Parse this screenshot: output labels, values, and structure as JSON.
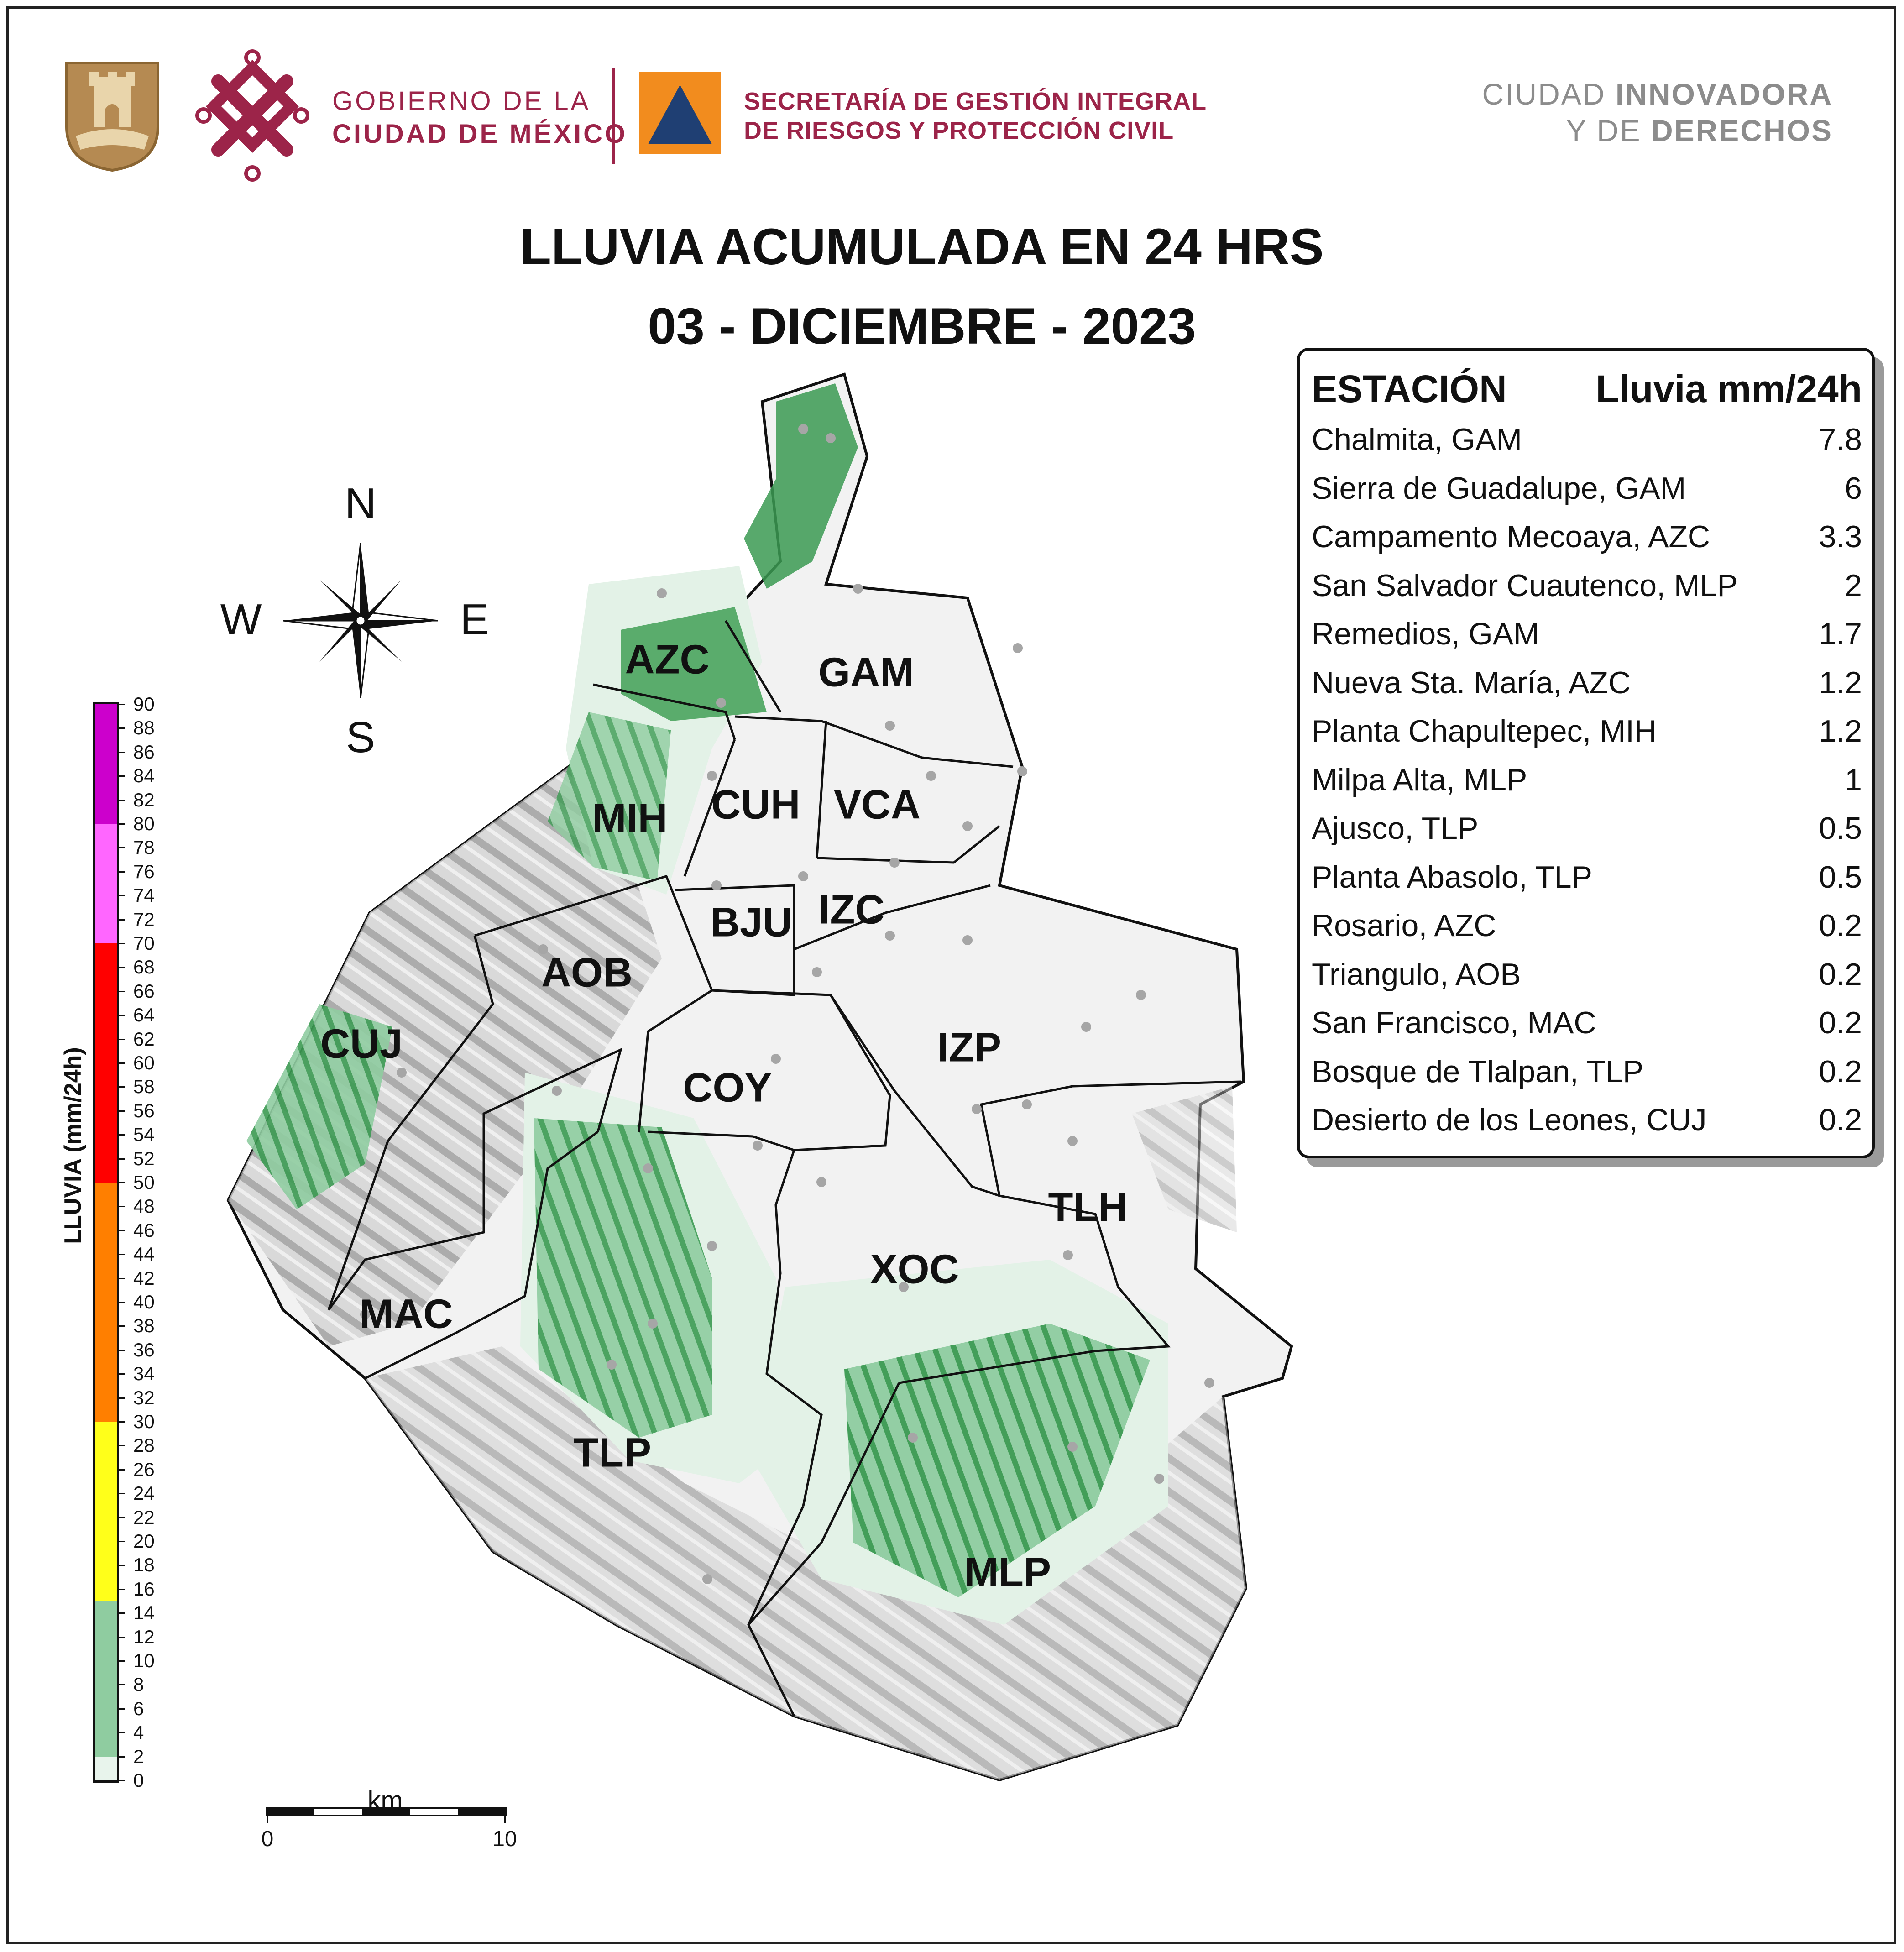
{
  "header": {
    "gobierno_line1": "GOBIERNO DE LA",
    "gobierno_line2": "CIUDAD DE MÉXICO",
    "secretaria_line1": "SECRETARÍA DE GESTIÓN INTEGRAL",
    "secretaria_line2": "DE RIESGOS Y PROTECCIÓN CIVIL",
    "slogan_line1_regular": "CIUDAD ",
    "slogan_line1_bold": "INNOVADORA",
    "slogan_line2_regular": "Y DE ",
    "slogan_line2_bold": "DERECHOS"
  },
  "title": {
    "line1": "LLUVIA ACUMULADA EN 24 HRS",
    "line2": "03 - DICIEMBRE - 2023"
  },
  "stations_table": {
    "header_station": "ESTACIÓN",
    "header_value": "Lluvia mm/24h",
    "rows": [
      {
        "station": "Chalmita, GAM",
        "value": "7.8"
      },
      {
        "station": "Sierra de Guadalupe, GAM",
        "value": "6"
      },
      {
        "station": "Campamento Mecoaya, AZC",
        "value": "3.3"
      },
      {
        "station": "San Salvador Cuautenco, MLP",
        "value": "2"
      },
      {
        "station": "Remedios, GAM",
        "value": "1.7"
      },
      {
        "station": "Nueva Sta. María, AZC",
        "value": "1.2"
      },
      {
        "station": "Planta Chapultepec, MIH",
        "value": "1.2"
      },
      {
        "station": "Milpa Alta, MLP",
        "value": "1"
      },
      {
        "station": "Ajusco, TLP",
        "value": "0.5"
      },
      {
        "station": "Planta Abasolo, TLP",
        "value": "0.5"
      },
      {
        "station": "Rosario, AZC",
        "value": "0.2"
      },
      {
        "station": "Triangulo, AOB",
        "value": "0.2"
      },
      {
        "station": "San Francisco, MAC",
        "value": "0.2"
      },
      {
        "station": "Bosque de Tlalpan, TLP",
        "value": "0.2"
      },
      {
        "station": "Desierto de los Leones, CUJ",
        "value": "0.2"
      }
    ]
  },
  "municipalities": [
    "AZC",
    "GAM",
    "MIH",
    "CUH",
    "VCA",
    "BJU",
    "IZC",
    "AOB",
    "CUJ",
    "COY",
    "IZP",
    "TLH",
    "XOC",
    "MAC",
    "TLP",
    "MLP"
  ],
  "compass": {
    "north": "N",
    "south": "S",
    "east": "E",
    "west": "W"
  },
  "colorbar": {
    "title": "LLUVIA (mm/24h)",
    "min": 0,
    "max": 90,
    "step": 2,
    "colors": [
      {
        "from": 0,
        "to": 2,
        "color": "#e8f4ec"
      },
      {
        "from": 2,
        "to": 15,
        "color": "#8fcca0"
      },
      {
        "from": 15,
        "to": 30,
        "color": "#ffff1a"
      },
      {
        "from": 30,
        "to": 50,
        "color": "#ff7f00"
      },
      {
        "from": 50,
        "to": 70,
        "color": "#ff0000"
      },
      {
        "from": 70,
        "to": 80,
        "color": "#ff66ff"
      },
      {
        "from": 80,
        "to": 90,
        "color": "#cc00cc"
      }
    ]
  },
  "scale_bar": {
    "unit": "km",
    "start": "0",
    "end": "10"
  },
  "colors": {
    "brand": "#9c2449",
    "shield": "#b58a52",
    "sgirpc_orange": "#f28c1e",
    "sgirpc_blue": "#1f3f73",
    "rain_dark": "#3b9a52"
  }
}
